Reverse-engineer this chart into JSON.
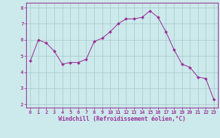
{
  "x": [
    0,
    1,
    2,
    3,
    4,
    5,
    6,
    7,
    8,
    9,
    10,
    11,
    12,
    13,
    14,
    15,
    16,
    17,
    18,
    19,
    20,
    21,
    22,
    23
  ],
  "y": [
    4.7,
    6.0,
    5.8,
    5.3,
    4.5,
    4.6,
    4.6,
    4.8,
    5.9,
    6.1,
    6.5,
    7.0,
    7.3,
    7.3,
    7.4,
    7.8,
    7.4,
    6.5,
    5.4,
    4.5,
    4.3,
    3.7,
    3.6,
    2.3
  ],
  "line_color": "#993399",
  "marker": "D",
  "marker_size": 2.0,
  "bg_color": "#cce9eb",
  "grid_color": "#aacccc",
  "xlabel": "Windchill (Refroidissement éolien,°C)",
  "xlabel_color": "#993399",
  "tick_color": "#993399",
  "spine_color": "#993399",
  "ylim": [
    1.8,
    8.3
  ],
  "xlim": [
    -0.5,
    23.5
  ],
  "yticks": [
    2,
    3,
    4,
    5,
    6,
    7,
    8
  ],
  "xticks": [
    0,
    1,
    2,
    3,
    4,
    5,
    6,
    7,
    8,
    9,
    10,
    11,
    12,
    13,
    14,
    15,
    16,
    17,
    18,
    19,
    20,
    21,
    22,
    23
  ],
  "tick_fontsize": 5.0,
  "xlabel_fontsize": 6.0,
  "linewidth": 0.8,
  "marker_edge_width": 0.5
}
